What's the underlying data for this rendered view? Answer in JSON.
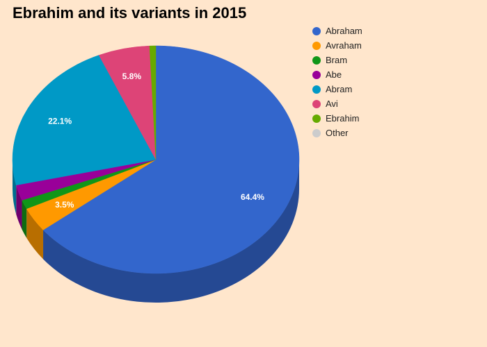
{
  "chart_data": {
    "type": "pie",
    "title": "Ebrahim and its variants in 2015",
    "legend_position": "top-right",
    "slices": [
      {
        "label": "Abraham",
        "value": 64.4,
        "value_label": "64.4%",
        "color": "#3366CC"
      },
      {
        "label": "Avraham",
        "value": 3.5,
        "value_label": "3.5%",
        "color": "#FF9900"
      },
      {
        "label": "Bram",
        "value": 1.3,
        "value_label": "",
        "color": "#109618"
      },
      {
        "label": "Abe",
        "value": 2.2,
        "value_label": "",
        "color": "#990099"
      },
      {
        "label": "Abram",
        "value": 22.1,
        "value_label": "22.1%",
        "color": "#0099C6"
      },
      {
        "label": "Avi",
        "value": 5.8,
        "value_label": "5.8%",
        "color": "#DD4477"
      },
      {
        "label": "Ebrahim",
        "value": 0.7,
        "value_label": "",
        "color": "#66AA00"
      },
      {
        "label": "Other",
        "value": 0,
        "value_label": "",
        "color": "#CCCCCC"
      }
    ]
  }
}
